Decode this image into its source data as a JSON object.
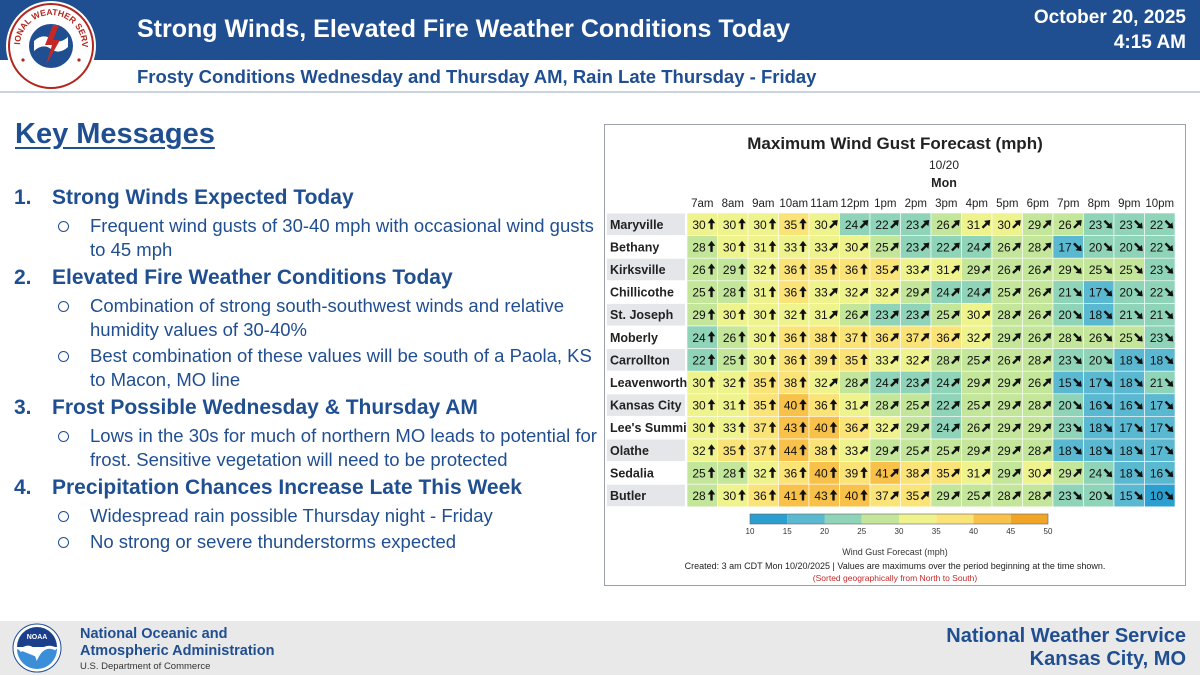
{
  "header": {
    "title": "Strong Winds, Elevated Fire Weather Conditions Today",
    "date": "October 20, 2025",
    "time": "4:15 AM",
    "subtitle": "Frosty Conditions Wednesday and Thursday AM, Rain Late Thursday - Friday",
    "logo_text": "NATIONAL WEATHER SERVICE",
    "colors": {
      "banner": "#1f4e91",
      "text": "#1f4e91"
    }
  },
  "key_messages": {
    "title": "Key Messages",
    "items": [
      {
        "num": "1.",
        "heading": "Strong Winds Expected Today",
        "bullets": [
          "Frequent wind gusts of 30-40 mph with occasional wind gusts to 45 mph"
        ]
      },
      {
        "num": "2.",
        "heading": "Elevated Fire Weather Conditions Today",
        "bullets": [
          "Combination of strong south-southwest winds and relative humidity values of 30-40%",
          "Best combination of these values will be south of a Paola, KS to Macon, MO line"
        ]
      },
      {
        "num": "3.",
        "heading": "Frost Possible Wednesday & Thursday AM",
        "bullets": [
          "Lows in the 30s for much of northern MO leads to potential for frost. Sensitive vegetation will need to be protected"
        ]
      },
      {
        "num": "4.",
        "heading": "Precipitation Chances Increase Late This Week",
        "bullets": [
          "Widespread rain possible Thursday night - Friday",
          "No strong or severe thunderstorms expected"
        ]
      }
    ]
  },
  "chart_data": {
    "type": "heatmap",
    "title": "Maximum Wind Gust Forecast (mph)",
    "date_label": "10/20",
    "day_label": "Mon",
    "x": [
      "7am",
      "8am",
      "9am",
      "10am",
      "11am",
      "12pm",
      "1pm",
      "2pm",
      "3pm",
      "4pm",
      "5pm",
      "6pm",
      "7pm",
      "8pm",
      "9pm",
      "10pm"
    ],
    "y": [
      "Maryville",
      "Bethany",
      "Kirksville",
      "Chillicothe",
      "St. Joseph",
      "Moberly",
      "Carrollton",
      "Leavenworth",
      "Kansas City",
      "Lee's Summit",
      "Olathe",
      "Sedalia",
      "Butler"
    ],
    "values": [
      [
        30,
        30,
        30,
        35,
        30,
        24,
        22,
        23,
        26,
        31,
        30,
        29,
        26,
        23,
        23,
        22
      ],
      [
        28,
        30,
        31,
        33,
        33,
        30,
        25,
        23,
        22,
        24,
        26,
        28,
        17,
        20,
        20,
        22
      ],
      [
        26,
        29,
        32,
        36,
        35,
        36,
        35,
        33,
        31,
        29,
        26,
        26,
        29,
        25,
        25,
        23
      ],
      [
        25,
        28,
        31,
        36,
        33,
        32,
        32,
        29,
        24,
        24,
        25,
        26,
        21,
        17,
        20,
        22
      ],
      [
        29,
        30,
        30,
        32,
        31,
        26,
        23,
        23,
        25,
        30,
        28,
        26,
        20,
        18,
        21,
        21
      ],
      [
        24,
        26,
        30,
        36,
        38,
        37,
        36,
        37,
        36,
        32,
        29,
        26,
        28,
        26,
        25,
        23
      ],
      [
        22,
        25,
        30,
        36,
        39,
        35,
        33,
        32,
        28,
        25,
        26,
        28,
        23,
        20,
        18,
        18
      ],
      [
        30,
        32,
        35,
        38,
        32,
        28,
        24,
        23,
        24,
        29,
        29,
        26,
        15,
        17,
        18,
        21
      ],
      [
        30,
        31,
        35,
        40,
        36,
        31,
        28,
        25,
        22,
        25,
        29,
        28,
        20,
        16,
        16,
        17
      ],
      [
        30,
        33,
        37,
        43,
        40,
        36,
        32,
        29,
        24,
        26,
        29,
        29,
        23,
        18,
        17,
        17
      ],
      [
        32,
        35,
        37,
        44,
        38,
        33,
        29,
        25,
        25,
        29,
        29,
        28,
        18,
        18,
        18,
        17
      ],
      [
        25,
        28,
        32,
        36,
        40,
        39,
        41,
        38,
        35,
        31,
        29,
        30,
        29,
        24,
        18,
        16
      ],
      [
        28,
        30,
        36,
        41,
        43,
        40,
        37,
        35,
        29,
        25,
        28,
        28,
        23,
        20,
        15,
        10
      ]
    ],
    "arrow_directions": [
      [
        "N",
        "N",
        "N",
        "N",
        "NE",
        "NE",
        "NE",
        "NE",
        "NE",
        "NE",
        "NE",
        "NE",
        "NE",
        "SE",
        "SE",
        "SE"
      ],
      [
        "N",
        "N",
        "N",
        "N",
        "NE",
        "NE",
        "NE",
        "NE",
        "NE",
        "NE",
        "NE",
        "NE",
        "SE",
        "SE",
        "SE",
        "SE"
      ],
      [
        "N",
        "N",
        "N",
        "N",
        "N",
        "N",
        "NE",
        "NE",
        "NE",
        "NE",
        "NE",
        "NE",
        "SE",
        "SE",
        "SE",
        "SE"
      ],
      [
        "N",
        "N",
        "N",
        "N",
        "NE",
        "NE",
        "NE",
        "NE",
        "NE",
        "NE",
        "NE",
        "NE",
        "SE",
        "SE",
        "SE",
        "SE"
      ],
      [
        "N",
        "N",
        "N",
        "N",
        "NE",
        "NE",
        "NE",
        "NE",
        "NE",
        "NE",
        "NE",
        "NE",
        "SE",
        "SE",
        "SE",
        "SE"
      ],
      [
        "N",
        "N",
        "N",
        "N",
        "N",
        "N",
        "NE",
        "NE",
        "NE",
        "NE",
        "NE",
        "NE",
        "SE",
        "SE",
        "SE",
        "SE"
      ],
      [
        "N",
        "N",
        "N",
        "N",
        "N",
        "N",
        "NE",
        "NE",
        "NE",
        "NE",
        "NE",
        "NE",
        "SE",
        "SE",
        "SE",
        "SE"
      ],
      [
        "N",
        "N",
        "N",
        "N",
        "NE",
        "NE",
        "NE",
        "NE",
        "NE",
        "NE",
        "NE",
        "NE",
        "SE",
        "SE",
        "SE",
        "SE"
      ],
      [
        "N",
        "N",
        "N",
        "N",
        "N",
        "NE",
        "NE",
        "NE",
        "NE",
        "NE",
        "NE",
        "NE",
        "SE",
        "SE",
        "SE",
        "SE"
      ],
      [
        "N",
        "N",
        "N",
        "N",
        "N",
        "NE",
        "NE",
        "NE",
        "NE",
        "NE",
        "NE",
        "NE",
        "SE",
        "SE",
        "SE",
        "SE"
      ],
      [
        "N",
        "N",
        "N",
        "N",
        "N",
        "NE",
        "NE",
        "NE",
        "NE",
        "NE",
        "NE",
        "NE",
        "SE",
        "SE",
        "SE",
        "SE"
      ],
      [
        "N",
        "N",
        "N",
        "N",
        "N",
        "N",
        "NE",
        "NE",
        "NE",
        "NE",
        "NE",
        "NE",
        "NE",
        "SE",
        "SE",
        "SE"
      ],
      [
        "N",
        "N",
        "N",
        "N",
        "N",
        "N",
        "NE",
        "NE",
        "NE",
        "NE",
        "NE",
        "NE",
        "SE",
        "SE",
        "SE",
        "SE"
      ]
    ],
    "colorbar": {
      "label": "Wind Gust Forecast (mph)",
      "ticks": [
        10,
        15,
        20,
        25,
        30,
        35,
        40,
        45,
        50
      ],
      "colors": [
        "#2b9fcf",
        "#5ab8d0",
        "#8fd3b8",
        "#c4e69a",
        "#eef38e",
        "#fbe477",
        "#f8c24a",
        "#f1a524"
      ]
    },
    "footnote": "Created: 3 am CDT Mon 10/20/2025  |  Values are maximums over the period beginning at the time shown.",
    "footnote2": "(Sorted geographically from North to South)"
  },
  "footer": {
    "org_line1": "National Oceanic and",
    "org_line2": "Atmospheric Administration",
    "dept": "U.S. Department of Commerce",
    "office_line1": "National Weather Service",
    "office_line2": "Kansas City, MO",
    "logo_text": "NOAA"
  }
}
